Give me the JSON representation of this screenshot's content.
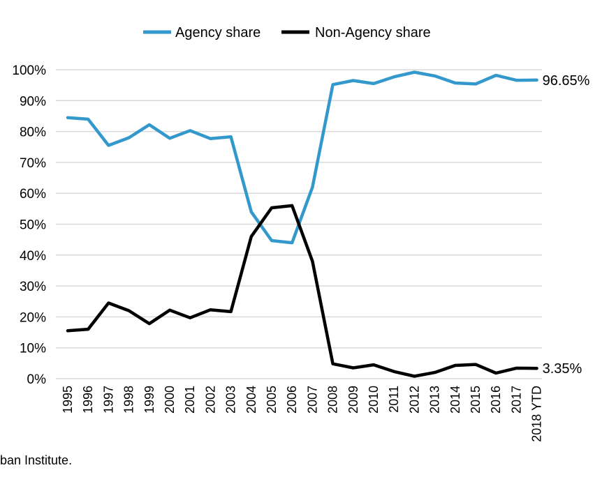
{
  "chart_data": {
    "type": "line",
    "categories": [
      "1995",
      "1996",
      "1997",
      "1998",
      "1999",
      "2000",
      "2001",
      "2002",
      "2003",
      "2004",
      "2005",
      "2006",
      "2007",
      "2008",
      "2009",
      "2010",
      "2011",
      "2012",
      "2013",
      "2014",
      "2015",
      "2016",
      "2017",
      "2018 YTD"
    ],
    "series": [
      {
        "name": "Agency share",
        "color": "#3399cc",
        "values": [
          84.5,
          84.0,
          75.5,
          78.0,
          82.2,
          77.8,
          80.3,
          77.7,
          78.3,
          54.0,
          44.7,
          44.0,
          62.0,
          95.2,
          96.5,
          95.5,
          97.7,
          99.2,
          98.0,
          95.7,
          95.4,
          98.2,
          96.6,
          96.65
        ],
        "end_label": "96.65%"
      },
      {
        "name": "Non-Agency share",
        "color": "#000000",
        "values": [
          15.5,
          16.0,
          24.5,
          22.0,
          17.8,
          22.2,
          19.7,
          22.3,
          21.7,
          46.0,
          55.3,
          56.0,
          38.0,
          4.8,
          3.5,
          4.5,
          2.3,
          0.8,
          2.0,
          4.3,
          4.6,
          1.8,
          3.4,
          3.35
        ],
        "end_label": "3.35%"
      }
    ],
    "y_ticks": [
      "0%",
      "10%",
      "20%",
      "30%",
      "40%",
      "50%",
      "60%",
      "70%",
      "80%",
      "90%",
      "100%"
    ],
    "ylim": [
      0,
      100
    ],
    "grid": true,
    "legend_position": "top-center"
  },
  "source_text": "ban Institute."
}
